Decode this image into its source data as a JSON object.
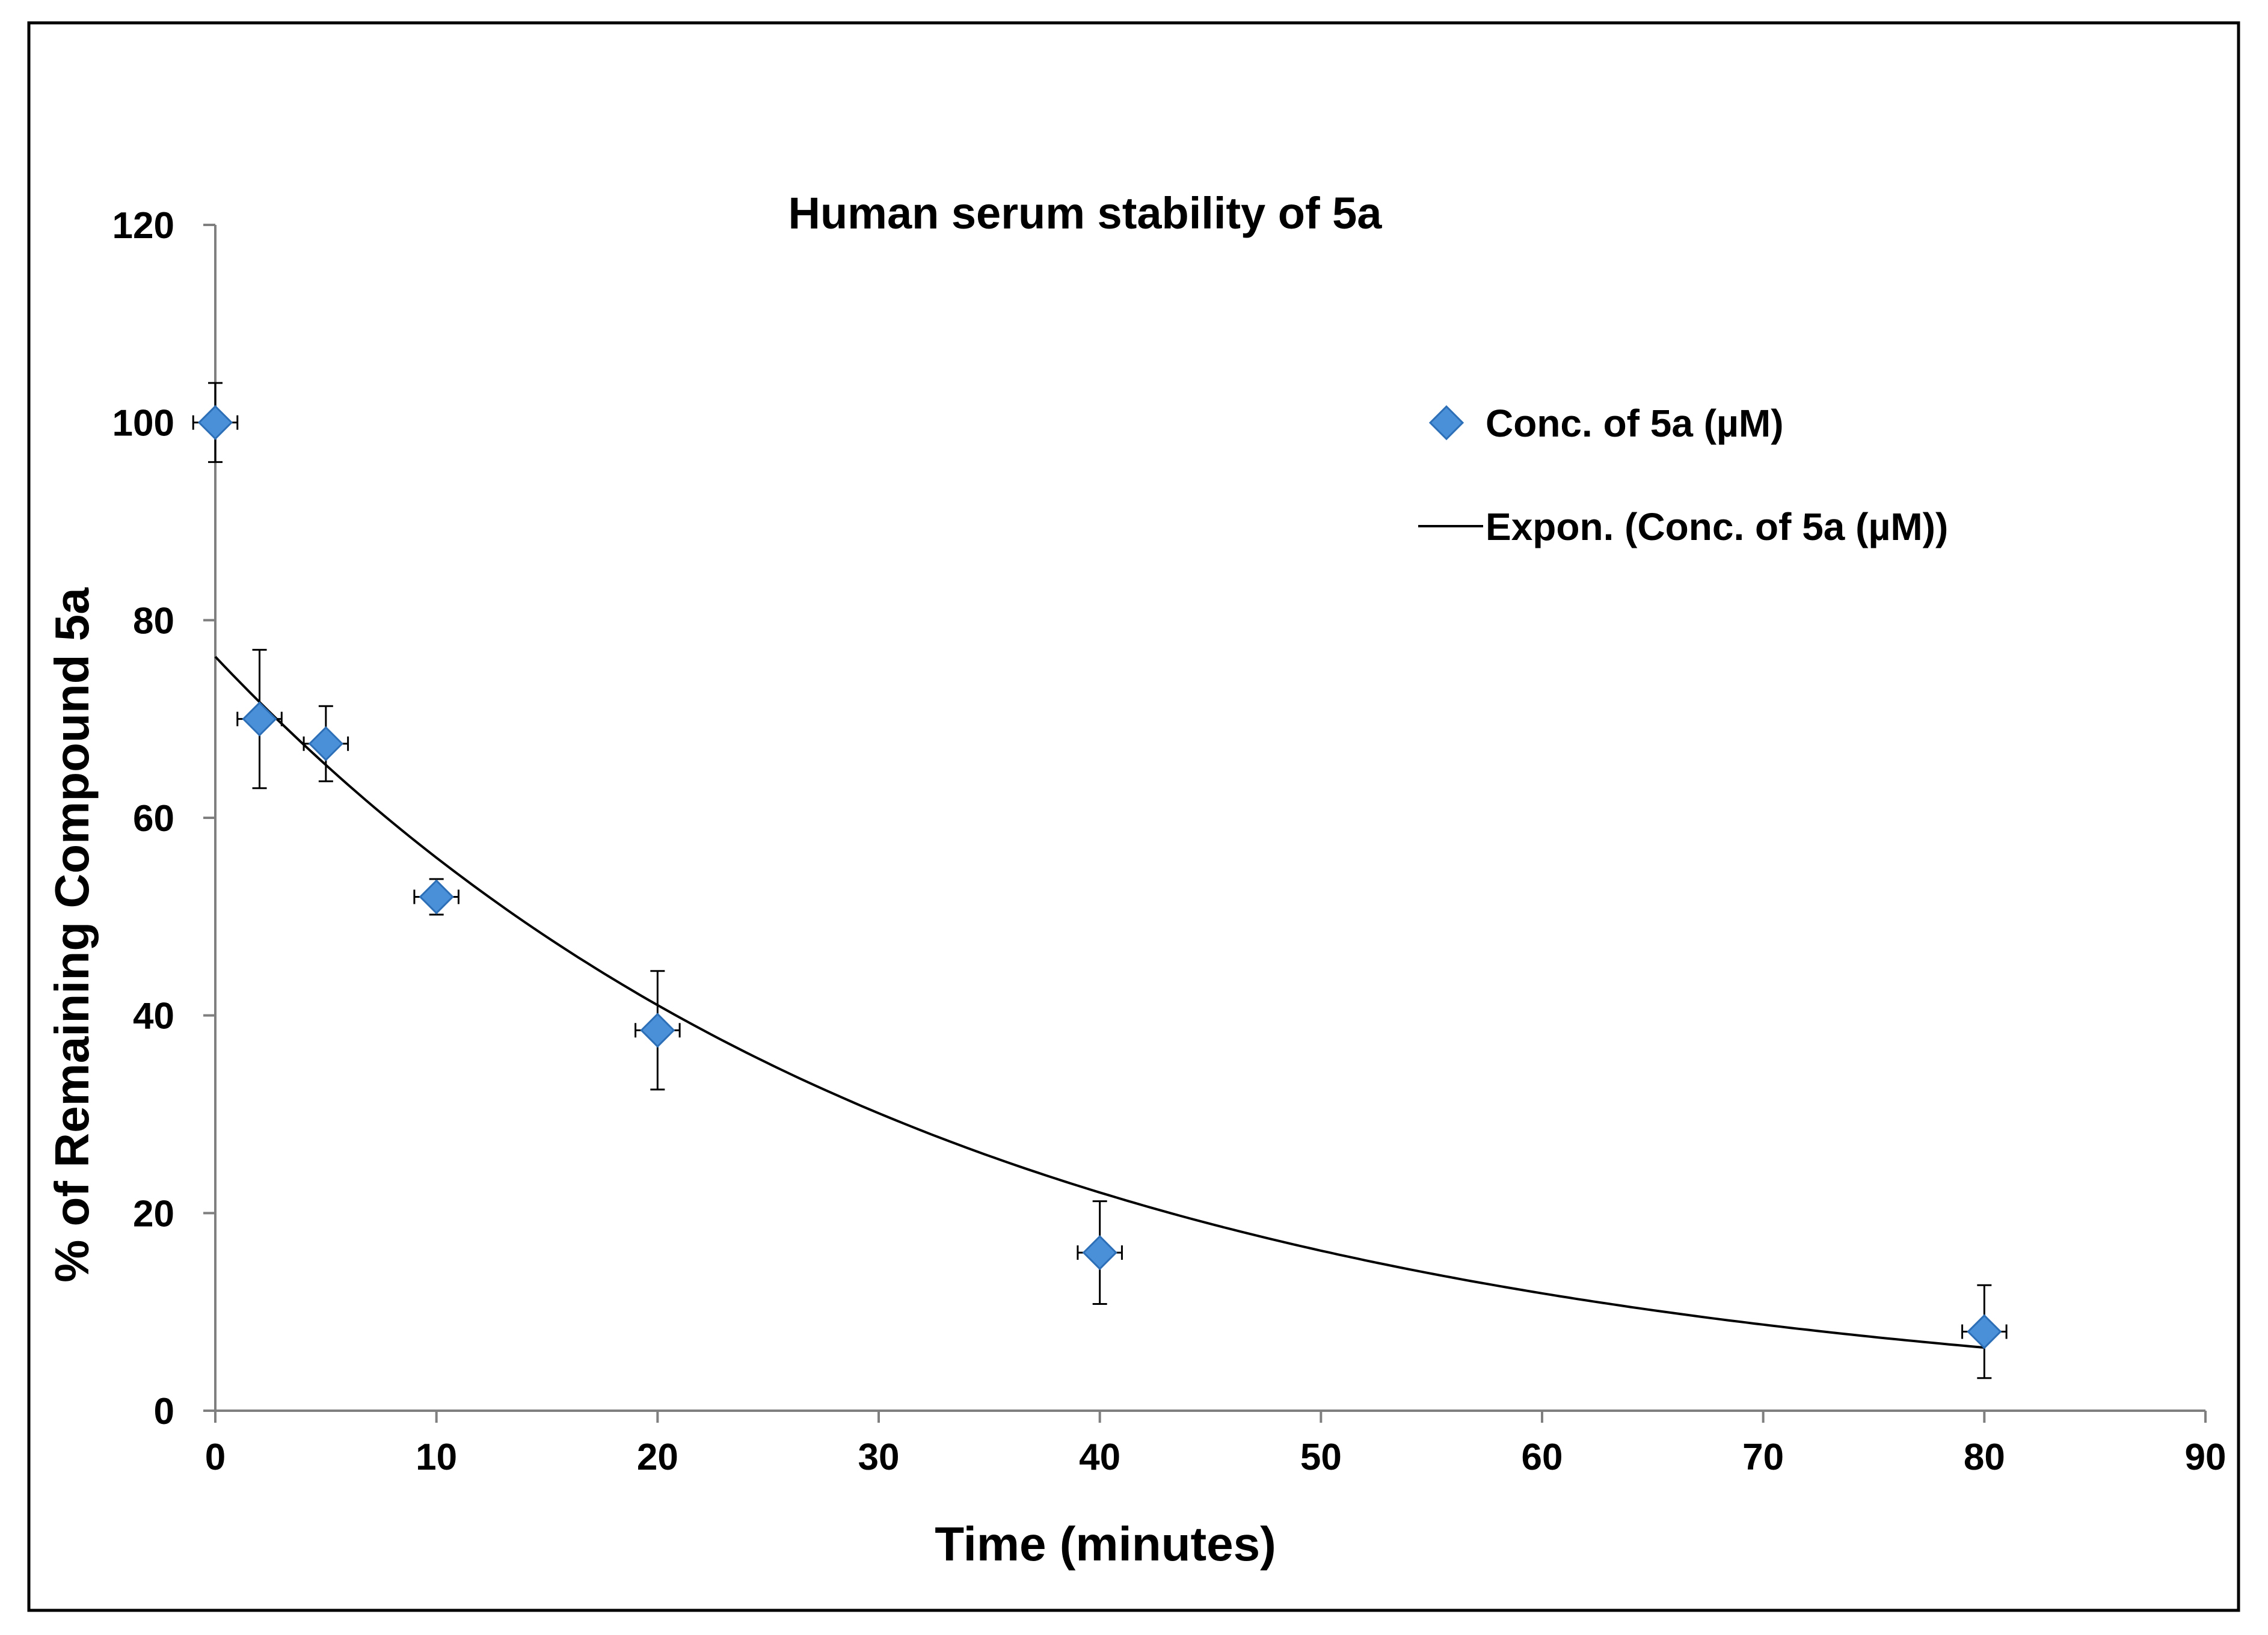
{
  "chart_data": {
    "type": "scatter",
    "title": "Human serum stability of 5a",
    "xlabel": "Time (minutes)",
    "ylabel": "% of Remaining Compound 5a",
    "xlim": [
      0,
      90
    ],
    "ylim": [
      0,
      120
    ],
    "x_ticks": [
      0,
      10,
      20,
      30,
      40,
      50,
      60,
      70,
      80,
      90
    ],
    "y_ticks": [
      0,
      20,
      40,
      60,
      80,
      100,
      120
    ],
    "grid": false,
    "legend_position": "top-right",
    "series": [
      {
        "name": "Conc. of 5a (µM)",
        "marker": "diamond",
        "color": "#4a90d9",
        "x": [
          0,
          2,
          5,
          10,
          20,
          40,
          80
        ],
        "y": [
          100,
          70,
          67.5,
          52,
          38.5,
          16,
          8
        ],
        "y_error": [
          4,
          7,
          3.8,
          1.8,
          6,
          5.2,
          4.7
        ],
        "x_error": [
          1,
          1,
          1,
          1,
          1,
          1,
          1
        ]
      }
    ],
    "trendline": {
      "name": "Expon. (Conc. of 5a (µM))",
      "type": "exponential",
      "a": 76.3,
      "b": -0.031,
      "x_range": [
        0,
        80
      ],
      "color": "#000000"
    }
  }
}
